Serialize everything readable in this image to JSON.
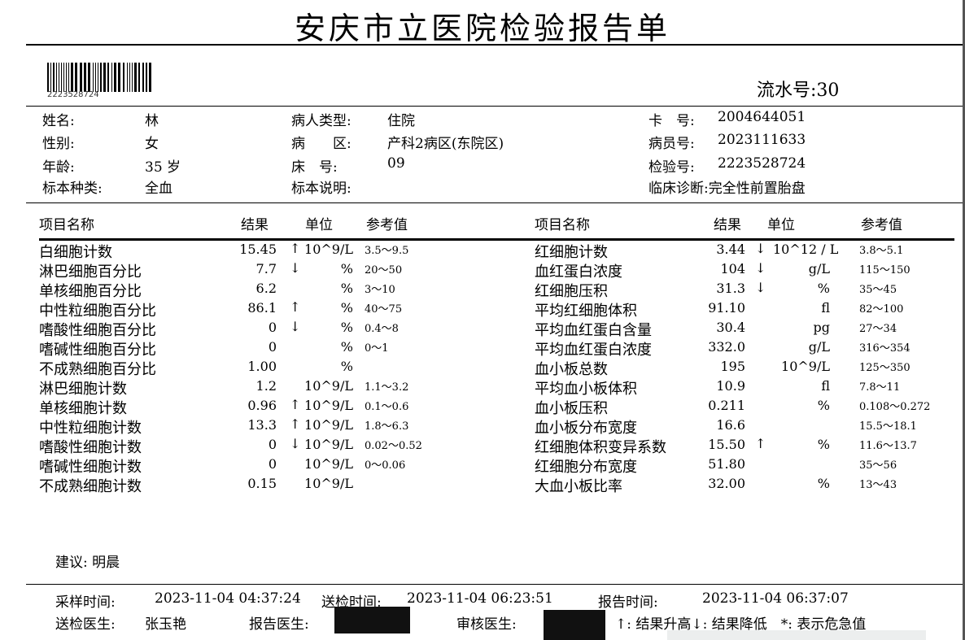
{
  "title": "安庆市立医院检验报告单",
  "barcode": "2223528724",
  "serial": {
    "label": "流水号:",
    "value": "30"
  },
  "patient": {
    "name_label": "姓名:",
    "name": "林",
    "sex_label": "性别:",
    "sex": "女",
    "age_label": "年龄:",
    "age": "35 岁",
    "specimen_label": "标本种类:",
    "specimen": "全血",
    "type_label": "病人类型:",
    "type": "住院",
    "ward_label": "病　　区:",
    "ward": "产科2病区(东院区)",
    "bed_label": "床　号:",
    "bed": "09",
    "specimen_note_label": "标本说明:",
    "specimen_note": "",
    "card_label": "卡　号:",
    "card": "2004644051",
    "inpatient_label": "病员号:",
    "inpatient": "2023111633",
    "test_no_label": "检验号:",
    "test_no": "2223528724",
    "diagnosis_label": "临床诊断:",
    "diagnosis": "完全性前置胎盘"
  },
  "headers": {
    "name": "项目名称",
    "result": "结果",
    "unit": "单位",
    "ref": "参考值"
  },
  "left_rows": [
    {
      "name": "白细胞计数",
      "result": "15.45",
      "flag": "↑",
      "unit": "10^9/L",
      "ref": "3.5～9.5"
    },
    {
      "name": "淋巴细胞百分比",
      "result": "7.7",
      "flag": "↓",
      "unit": "%",
      "ref": "20～50"
    },
    {
      "name": "单核细胞百分比",
      "result": "6.2",
      "flag": "",
      "unit": "%",
      "ref": "3～10"
    },
    {
      "name": "中性粒细胞百分比",
      "result": "86.1",
      "flag": "↑",
      "unit": "%",
      "ref": "40～75"
    },
    {
      "name": "嗜酸性细胞百分比",
      "result": "0",
      "flag": "↓",
      "unit": "%",
      "ref": "0.4～8"
    },
    {
      "name": "嗜碱性细胞百分比",
      "result": "0",
      "flag": "",
      "unit": "%",
      "ref": "0～1"
    },
    {
      "name": "不成熟细胞百分比",
      "result": "1.00",
      "flag": "",
      "unit": "%",
      "ref": ""
    },
    {
      "name": "淋巴细胞计数",
      "result": "1.2",
      "flag": "",
      "unit": "10^9/L",
      "ref": "1.1～3.2"
    },
    {
      "name": "单核细胞计数",
      "result": "0.96",
      "flag": "↑",
      "unit": "10^9/L",
      "ref": "0.1～0.6"
    },
    {
      "name": "中性粒细胞计数",
      "result": "13.3",
      "flag": "↑",
      "unit": "10^9/L",
      "ref": "1.8～6.3"
    },
    {
      "name": "嗜酸性细胞计数",
      "result": "0",
      "flag": "↓",
      "unit": "10^9/L",
      "ref": "0.02～0.52"
    },
    {
      "name": "嗜碱性细胞计数",
      "result": "0",
      "flag": "",
      "unit": "10^9/L",
      "ref": "0～0.06"
    },
    {
      "name": "不成熟细胞计数",
      "result": "0.15",
      "flag": "",
      "unit": "10^9/L",
      "ref": ""
    }
  ],
  "right_rows": [
    {
      "name": "红细胞计数",
      "result": "3.44",
      "flag": "↓",
      "unit": "10^12 / L",
      "ref": "3.8～5.1"
    },
    {
      "name": "血红蛋白浓度",
      "result": "104",
      "flag": "↓",
      "unit": "g/L",
      "ref": "115～150"
    },
    {
      "name": "红细胞压积",
      "result": "31.3",
      "flag": "↓",
      "unit": "%",
      "ref": "35～45"
    },
    {
      "name": "平均红细胞体积",
      "result": "91.10",
      "flag": "",
      "unit": "fl",
      "ref": "82～100"
    },
    {
      "name": "平均血红蛋白含量",
      "result": "30.4",
      "flag": "",
      "unit": "pg",
      "ref": "27～34"
    },
    {
      "name": "平均血红蛋白浓度",
      "result": "332.0",
      "flag": "",
      "unit": "g/L",
      "ref": "316～354"
    },
    {
      "name": "血小板总数",
      "result": "195",
      "flag": "",
      "unit": "10^9/L",
      "ref": "125～350"
    },
    {
      "name": "平均血小板体积",
      "result": "10.9",
      "flag": "",
      "unit": "fl",
      "ref": "7.8～11"
    },
    {
      "name": "血小板压积",
      "result": "0.211",
      "flag": "",
      "unit": "%",
      "ref": "0.108～0.272"
    },
    {
      "name": "血小板分布宽度",
      "result": "16.6",
      "flag": "",
      "unit": "",
      "ref": "15.5～18.1"
    },
    {
      "name": "红细胞体积变异系数",
      "result": "15.50",
      "flag": "↑",
      "unit": "%",
      "ref": "11.6～13.7"
    },
    {
      "name": "红细胞分布宽度",
      "result": "51.80",
      "flag": "",
      "unit": "",
      "ref": "35～56"
    },
    {
      "name": "大血小板比率",
      "result": "32.00",
      "flag": "",
      "unit": "%",
      "ref": "13～43"
    }
  ],
  "advice": "建议: 明晨",
  "footer": {
    "sample_time_label": "采样时间:",
    "sample_time": "2023-11-04 04:37:24",
    "send_time_label": "送检时间:",
    "send_time": "2023-11-04 06:23:51",
    "report_time_label": "报告时间:",
    "report_time": "2023-11-04 06:37:07",
    "send_doctor_label": "送检医生:",
    "send_doctor": "张玉艳",
    "report_doctor_label": "报告医生:",
    "review_doctor_label": "审核医生:",
    "legend": "↑: 结果升高↓: 结果降低　*: 表示危急值"
  }
}
